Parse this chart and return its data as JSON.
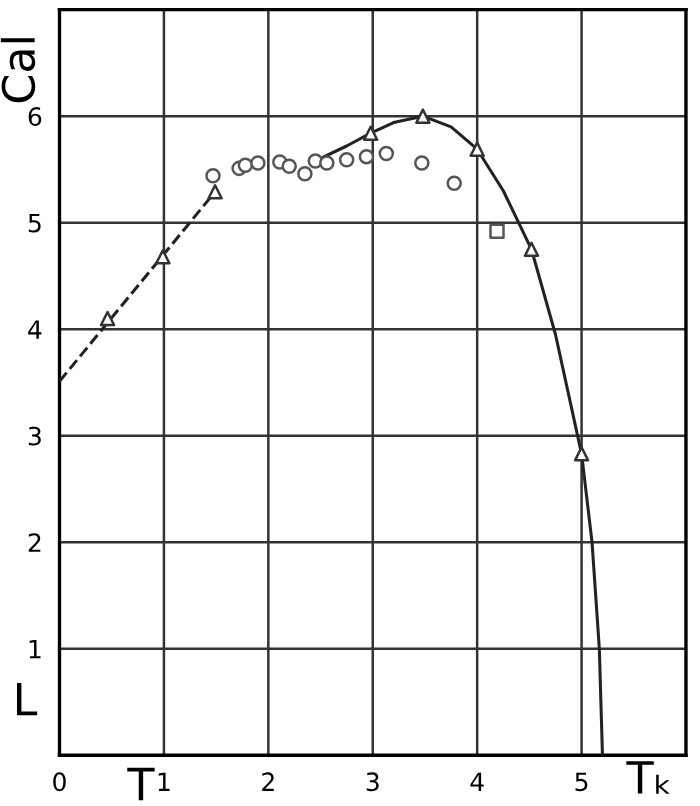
{
  "chart_data": {
    "type": "scatter",
    "xlabel": "T",
    "ylabel": "Cal",
    "annotations": [
      "L",
      "Tₖ"
    ],
    "xlim": [
      0,
      6
    ],
    "ylim": [
      0,
      7
    ],
    "xticks": [
      0,
      1,
      2,
      3,
      4,
      5,
      {
        "value": 6,
        "label": null
      }
    ],
    "yticks": [
      {
        "value": 0,
        "label": null
      },
      1,
      2,
      3,
      4,
      5,
      6,
      {
        "value": 7,
        "label": null
      }
    ],
    "grid": true,
    "legend": false,
    "series": [
      {
        "type": "line",
        "color": "#222222",
        "line_style": "dashed",
        "marker": "none",
        "x": [
          0,
          1.49
        ],
        "values": [
          3.51,
          5.29
        ]
      },
      {
        "type": "line",
        "color": "#222222",
        "line_style": "solid",
        "marker": "none",
        "x": [
          2.45,
          2.75,
          2.98,
          3.2,
          3.48,
          3.75,
          4.0,
          4.25,
          4.52,
          4.75,
          5.0,
          5.1,
          5.17,
          5.2
        ],
        "values": [
          5.58,
          5.72,
          5.84,
          5.94,
          6.0,
          5.9,
          5.69,
          5.3,
          4.75,
          3.95,
          2.83,
          2.0,
          1.0,
          0
        ]
      },
      {
        "color": "#333333",
        "marker": "triangle",
        "x": [
          0.46,
          0.99,
          1.49,
          2.98,
          3.48,
          4.0,
          4.52,
          5.0
        ],
        "values": [
          4.1,
          4.68,
          5.29,
          5.84,
          6.0,
          5.69,
          4.75,
          2.83
        ]
      },
      {
        "color": "#555555",
        "marker": "circle",
        "x": [
          1.47,
          1.72,
          1.78,
          1.9,
          2.11,
          2.2,
          2.35,
          2.45,
          2.56,
          2.75,
          2.94,
          3.13,
          3.47,
          3.78
        ],
        "values": [
          5.44,
          5.51,
          5.54,
          5.56,
          5.57,
          5.53,
          5.46,
          5.58,
          5.56,
          5.59,
          5.62,
          5.65,
          5.56,
          5.37
        ]
      },
      {
        "color": "#555555",
        "marker": "square",
        "x": [
          4.19
        ],
        "values": [
          4.92
        ]
      }
    ]
  }
}
